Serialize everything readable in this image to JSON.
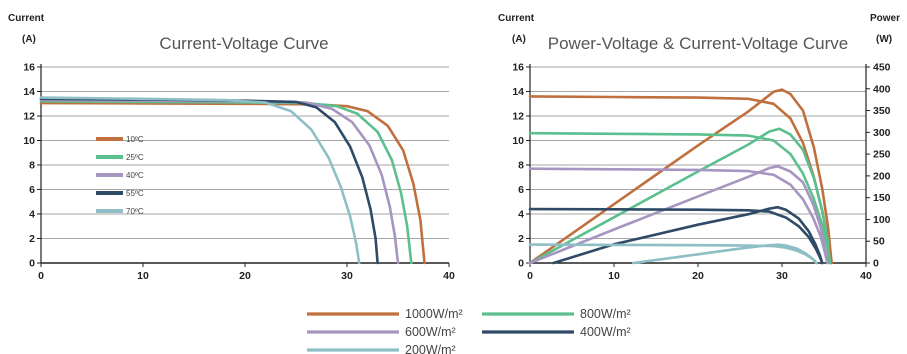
{
  "colors": {
    "c1000": "#c0703e",
    "c800": "#5bbf8e",
    "c600": "#a695c0",
    "c400": "#2e4a66",
    "c200": "#8fbfc6"
  },
  "chart_data": [
    {
      "type": "line",
      "title": "Current-Voltage Curve",
      "ylabel": "Current",
      "yunit": "(A)",
      "xlim": [
        0,
        40
      ],
      "ylim": [
        0,
        16
      ],
      "xticks": [
        "0",
        "10",
        "20",
        "30",
        "40"
      ],
      "yticks": [
        "0",
        "2",
        "4",
        "6",
        "8",
        "10",
        "12",
        "14",
        "16"
      ],
      "grid": "horizontal",
      "legend_position": "inside-left",
      "series": [
        {
          "name": "10ºC",
          "color": "#c0703e",
          "points": [
            [
              0,
              13.05
            ],
            [
              10,
              13.03
            ],
            [
              20,
              13.0
            ],
            [
              27,
              12.95
            ],
            [
              30,
              12.8
            ],
            [
              32,
              12.4
            ],
            [
              34,
              11.2
            ],
            [
              35.5,
              9.2
            ],
            [
              36.5,
              6.5
            ],
            [
              37.2,
              3.5
            ],
            [
              37.6,
              0
            ]
          ]
        },
        {
          "name": "25ºC",
          "color": "#5bbf8e",
          "points": [
            [
              0,
              13.2
            ],
            [
              10,
              13.15
            ],
            [
              20,
              13.1
            ],
            [
              26,
              13.05
            ],
            [
              29,
              12.8
            ],
            [
              31,
              12.2
            ],
            [
              33,
              10.7
            ],
            [
              34.4,
              8.4
            ],
            [
              35.3,
              5.7
            ],
            [
              35.9,
              3.0
            ],
            [
              36.3,
              0
            ]
          ]
        },
        {
          "name": "40ºC",
          "color": "#a695c0",
          "points": [
            [
              0,
              13.3
            ],
            [
              10,
              13.25
            ],
            [
              20,
              13.2
            ],
            [
              26,
              13.1
            ],
            [
              28.5,
              12.6
            ],
            [
              30.5,
              11.5
            ],
            [
              32.2,
              9.6
            ],
            [
              33.4,
              7.2
            ],
            [
              34.2,
              4.6
            ],
            [
              34.7,
              2.2
            ],
            [
              35.0,
              0
            ]
          ]
        },
        {
          "name": "55ºC",
          "color": "#2e4a66",
          "points": [
            [
              0,
              13.4
            ],
            [
              10,
              13.35
            ],
            [
              20,
              13.25
            ],
            [
              25,
              13.15
            ],
            [
              27,
              12.7
            ],
            [
              28.8,
              11.5
            ],
            [
              30.3,
              9.5
            ],
            [
              31.5,
              7.0
            ],
            [
              32.3,
              4.4
            ],
            [
              32.8,
              2.0
            ],
            [
              33.0,
              0
            ]
          ]
        },
        {
          "name": "70ºC",
          "color": "#8fbfc6",
          "points": [
            [
              0,
              13.5
            ],
            [
              10,
              13.4
            ],
            [
              18,
              13.3
            ],
            [
              22,
              13.1
            ],
            [
              24.5,
              12.4
            ],
            [
              26.5,
              10.9
            ],
            [
              28.2,
              8.6
            ],
            [
              29.4,
              6.2
            ],
            [
              30.3,
              3.8
            ],
            [
              30.9,
              1.6
            ],
            [
              31.2,
              0
            ]
          ]
        }
      ]
    },
    {
      "type": "line",
      "title": "Power-Voltage & Current-Voltage Curve",
      "ylabel": "Current",
      "yunit": "(A)",
      "y2label": "Power",
      "y2unit": "(W)",
      "xlim": [
        0,
        40
      ],
      "ylim": [
        0,
        16
      ],
      "y2lim": [
        0,
        450
      ],
      "xticks": [
        "0",
        "10",
        "20",
        "30",
        "40"
      ],
      "yticks": [
        "0",
        "2",
        "4",
        "6",
        "8",
        "10",
        "12",
        "14",
        "16"
      ],
      "y2ticks": [
        "0",
        "50",
        "100",
        "150",
        "200",
        "250",
        "300",
        "350",
        "400",
        "450"
      ],
      "grid": "horizontal",
      "legend_position": "bottom",
      "series": [
        {
          "name": "1000W/m²",
          "color": "#c0703e",
          "current": [
            [
              0,
              13.6
            ],
            [
              10,
              13.55
            ],
            [
              20,
              13.5
            ],
            [
              26,
              13.4
            ],
            [
              29,
              13.0
            ],
            [
              31,
              11.8
            ],
            [
              32.5,
              9.8
            ],
            [
              33.8,
              7.0
            ],
            [
              34.8,
              4.2
            ],
            [
              35.5,
              1.8
            ],
            [
              35.9,
              0
            ]
          ],
          "power": [
            [
              0,
              0
            ],
            [
              10,
              135
            ],
            [
              20,
              270
            ],
            [
              26,
              348
            ],
            [
              29,
              393
            ],
            [
              30,
              398
            ],
            [
              31,
              388
            ],
            [
              32.5,
              350
            ],
            [
              33.8,
              265
            ],
            [
              34.8,
              170
            ],
            [
              35.5,
              80
            ],
            [
              35.9,
              0
            ]
          ]
        },
        {
          "name": "800W/m²",
          "color": "#5bbf8e",
          "current": [
            [
              0,
              10.6
            ],
            [
              10,
              10.55
            ],
            [
              20,
              10.5
            ],
            [
              26,
              10.4
            ],
            [
              29,
              10.0
            ],
            [
              31,
              8.9
            ],
            [
              32.5,
              7.3
            ],
            [
              33.8,
              5.2
            ],
            [
              34.8,
              3.1
            ],
            [
              35.4,
              1.3
            ],
            [
              35.7,
              0
            ]
          ],
          "power": [
            [
              0,
              0
            ],
            [
              10,
              105
            ],
            [
              20,
              210
            ],
            [
              26,
              272
            ],
            [
              28.5,
              302
            ],
            [
              29.7,
              308
            ],
            [
              31,
              295
            ],
            [
              32.5,
              260
            ],
            [
              33.8,
              195
            ],
            [
              34.8,
              120
            ],
            [
              35.4,
              55
            ],
            [
              35.7,
              0
            ]
          ]
        },
        {
          "name": "600W/m²",
          "color": "#a695c0",
          "current": [
            [
              0,
              7.7
            ],
            [
              10,
              7.65
            ],
            [
              20,
              7.6
            ],
            [
              26,
              7.5
            ],
            [
              29,
              7.2
            ],
            [
              31,
              6.4
            ],
            [
              32.5,
              5.2
            ],
            [
              33.7,
              3.7
            ],
            [
              34.6,
              2.2
            ],
            [
              35.1,
              0.9
            ],
            [
              35.4,
              0
            ]
          ],
          "power": [
            [
              0,
              0
            ],
            [
              10,
              77
            ],
            [
              20,
              153
            ],
            [
              26,
              198
            ],
            [
              28.5,
              218
            ],
            [
              29.5,
              222
            ],
            [
              31,
              210
            ],
            [
              32.5,
              185
            ],
            [
              33.7,
              135
            ],
            [
              34.6,
              83
            ],
            [
              35.1,
              35
            ],
            [
              35.4,
              0
            ]
          ]
        },
        {
          "name": "400W/m²",
          "color": "#2e4a66",
          "current": [
            [
              0,
              4.4
            ],
            [
              10,
              4.38
            ],
            [
              20,
              4.35
            ],
            [
              26,
              4.3
            ],
            [
              28.5,
              4.2
            ],
            [
              30.5,
              3.7
            ],
            [
              32,
              3.0
            ],
            [
              33.2,
              2.1
            ],
            [
              34.0,
              1.2
            ],
            [
              34.5,
              0.5
            ],
            [
              34.8,
              0
            ]
          ],
          "power": [
            [
              2.8,
              0
            ],
            [
              10,
              43
            ],
            [
              20,
              88
            ],
            [
              26,
              112
            ],
            [
              28.5,
              125
            ],
            [
              29.5,
              128
            ],
            [
              30.5,
              122
            ],
            [
              32,
              102
            ],
            [
              33.2,
              72
            ],
            [
              34.0,
              42
            ],
            [
              34.5,
              18
            ],
            [
              34.8,
              0
            ]
          ]
        },
        {
          "name": "200W/m²",
          "color": "#8fbfc6",
          "current": [
            [
              0,
              1.5
            ],
            [
              10,
              1.48
            ],
            [
              20,
              1.45
            ],
            [
              26,
              1.42
            ],
            [
              29,
              1.38
            ],
            [
              30.5,
              1.25
            ],
            [
              31.8,
              1.0
            ],
            [
              32.8,
              0.7
            ],
            [
              33.5,
              0.4
            ],
            [
              33.9,
              0.15
            ],
            [
              34.1,
              0
            ]
          ],
          "power": [
            [
              12.3,
              0
            ],
            [
              20,
              20
            ],
            [
              25,
              33
            ],
            [
              28,
              40
            ],
            [
              29.5,
              42
            ],
            [
              30.5,
              40
            ],
            [
              31.8,
              33
            ],
            [
              32.8,
              22
            ],
            [
              33.5,
              12
            ],
            [
              33.9,
              5
            ],
            [
              34.1,
              0
            ]
          ]
        }
      ]
    }
  ]
}
